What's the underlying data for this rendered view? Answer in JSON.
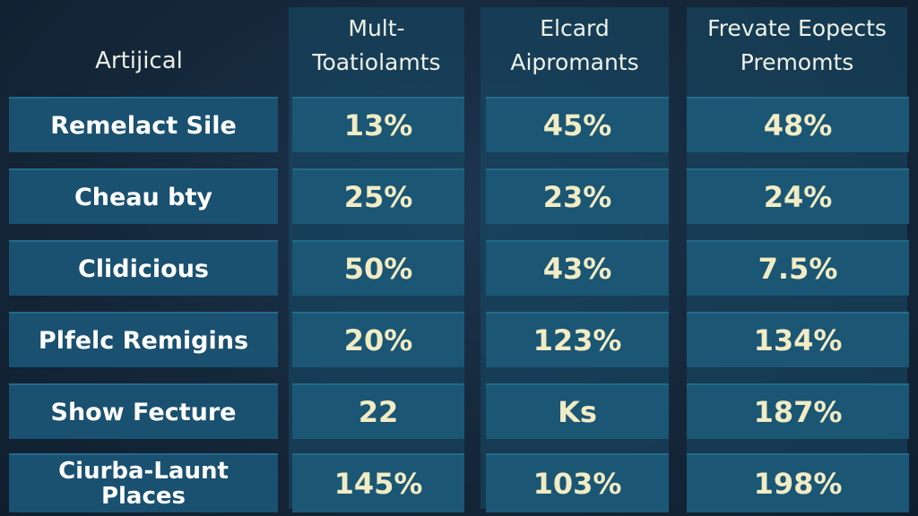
{
  "table": {
    "headers": [
      {
        "lines": [
          "Artijical"
        ]
      },
      {
        "lines": [
          "Mult-",
          "Toatiolamts"
        ]
      },
      {
        "lines": [
          "Elcard",
          "Aipromants"
        ]
      },
      {
        "lines": [
          "Frevate Eopects",
          "Premomts"
        ]
      }
    ],
    "rows": [
      {
        "label": [
          "Remelact Sile"
        ],
        "values": [
          "13%",
          "45%",
          "48%"
        ]
      },
      {
        "label": [
          "Cheau bty"
        ],
        "values": [
          "25%",
          "23%",
          "24%"
        ]
      },
      {
        "label": [
          "Clidicious"
        ],
        "values": [
          "50%",
          "43%",
          "7.5%"
        ]
      },
      {
        "label": [
          "Plfelc Remigins"
        ],
        "values": [
          "20%",
          "123%",
          "134%"
        ]
      },
      {
        "label": [
          "Show Fecture"
        ],
        "values": [
          "22",
          "Ks",
          "187%"
        ]
      },
      {
        "label": [
          "Ciurba-Launt",
          "Places"
        ],
        "values": [
          "145%",
          "103%",
          "198%"
        ]
      }
    ]
  },
  "colors": {
    "background": "#15283a",
    "panel": "#1b5674",
    "value_text": "#f1ecc4",
    "label_text": "#ffffff"
  }
}
